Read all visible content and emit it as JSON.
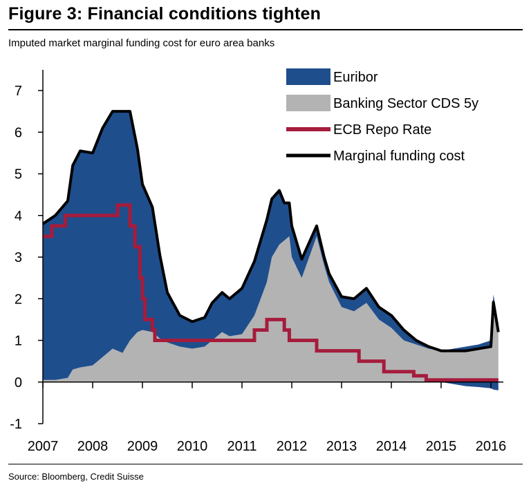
{
  "figure": {
    "title": "Figure 3: Financial conditions tighten",
    "subtitle": "Imputed market marginal funding cost for euro area banks",
    "source": "Source: Bloomberg, Credit Suisse"
  },
  "chart_data": {
    "type": "area",
    "title": "Imputed market marginal funding cost for euro area banks",
    "xlabel": "",
    "ylabel": "",
    "xlim": [
      2007.0,
      2016.25
    ],
    "ylim": [
      -1,
      7
    ],
    "x_ticks": [
      "2007",
      "2008",
      "2009",
      "2010",
      "2011",
      "2012",
      "2013",
      "2014",
      "2015",
      "2016"
    ],
    "y_ticks": [
      "-1",
      "0",
      "1",
      "2",
      "3",
      "4",
      "5",
      "6",
      "7"
    ],
    "grid": false,
    "legend_position": "top-right",
    "colors": {
      "euribor": "#1f4e8c",
      "cds": "#b3b3b3",
      "repo": "#a51c3c",
      "marginal": "#000000"
    },
    "series": [
      {
        "name": "Banking Sector CDS 5y",
        "style": "area",
        "x": [
          2007.0,
          2007.25,
          2007.5,
          2007.6,
          2007.75,
          2008.0,
          2008.2,
          2008.4,
          2008.6,
          2008.75,
          2008.9,
          2009.0,
          2009.2,
          2009.35,
          2009.5,
          2009.75,
          2010.0,
          2010.25,
          2010.4,
          2010.6,
          2010.75,
          2011.0,
          2011.25,
          2011.5,
          2011.6,
          2011.75,
          2011.85,
          2011.95,
          2012.0,
          2012.2,
          2012.35,
          2012.5,
          2012.65,
          2012.75,
          2013.0,
          2013.25,
          2013.5,
          2013.75,
          2014.0,
          2014.25,
          2014.5,
          2014.75,
          2015.0,
          2015.25,
          2015.5,
          2015.75,
          2016.0,
          2016.05,
          2016.15
        ],
        "values": [
          0.05,
          0.05,
          0.1,
          0.3,
          0.35,
          0.4,
          0.6,
          0.8,
          0.7,
          1.0,
          1.2,
          1.25,
          1.2,
          1.05,
          0.95,
          0.85,
          0.8,
          0.85,
          1.0,
          1.2,
          1.1,
          1.15,
          1.6,
          2.4,
          3.0,
          3.3,
          3.4,
          3.5,
          3.0,
          2.5,
          3.0,
          3.5,
          2.8,
          2.4,
          1.8,
          1.7,
          1.9,
          1.5,
          1.3,
          1.0,
          0.9,
          0.8,
          0.75,
          0.8,
          0.85,
          0.9,
          1.0,
          2.1,
          1.4
        ]
      },
      {
        "name": "Euribor",
        "style": "area",
        "x": [
          2007.0,
          2007.25,
          2007.5,
          2007.6,
          2007.75,
          2008.0,
          2008.2,
          2008.4,
          2008.6,
          2008.75,
          2008.9,
          2009.0,
          2009.2,
          2009.35,
          2009.5,
          2009.75,
          2010.0,
          2010.25,
          2010.4,
          2010.6,
          2010.75,
          2011.0,
          2011.25,
          2011.5,
          2011.6,
          2011.75,
          2011.85,
          2011.95,
          2012.0,
          2012.2,
          2012.35,
          2012.5,
          2012.65,
          2012.75,
          2013.0,
          2013.25,
          2013.5,
          2013.75,
          2014.0,
          2014.25,
          2014.5,
          2014.75,
          2015.0,
          2015.25,
          2015.5,
          2015.75,
          2016.0,
          2016.05,
          2016.15
        ],
        "values": [
          3.75,
          3.95,
          4.25,
          4.9,
          5.2,
          5.1,
          5.5,
          5.7,
          5.8,
          5.5,
          4.4,
          3.5,
          3.0,
          2.0,
          1.2,
          0.75,
          0.65,
          0.7,
          0.9,
          0.95,
          0.9,
          1.1,
          1.3,
          1.5,
          1.4,
          1.3,
          0.9,
          0.8,
          0.75,
          0.45,
          0.35,
          0.25,
          0.2,
          0.2,
          0.25,
          0.3,
          0.35,
          0.3,
          0.3,
          0.25,
          0.1,
          0.05,
          0.0,
          -0.05,
          -0.1,
          -0.12,
          -0.15,
          -0.18,
          -0.2
        ]
      },
      {
        "name": "ECB Repo Rate",
        "style": "step",
        "x": [
          2007.0,
          2007.18,
          2007.45,
          2008.5,
          2008.75,
          2008.85,
          2008.95,
          2009.0,
          2009.05,
          2009.2,
          2009.25,
          2009.35,
          2011.25,
          2011.5,
          2011.85,
          2011.95,
          2012.5,
          2013.35,
          2013.85,
          2014.45,
          2014.7,
          2016.15
        ],
        "values": [
          3.5,
          3.75,
          4.0,
          4.25,
          3.75,
          3.25,
          2.5,
          2.0,
          1.5,
          1.25,
          1.0,
          1.0,
          1.25,
          1.5,
          1.25,
          1.0,
          0.75,
          0.5,
          0.25,
          0.15,
          0.05,
          0.05
        ]
      },
      {
        "name": "Marginal funding cost",
        "style": "line",
        "x": [
          2007.0,
          2007.25,
          2007.5,
          2007.6,
          2007.75,
          2008.0,
          2008.2,
          2008.4,
          2008.6,
          2008.75,
          2008.9,
          2009.0,
          2009.2,
          2009.35,
          2009.5,
          2009.75,
          2010.0,
          2010.25,
          2010.4,
          2010.6,
          2010.75,
          2011.0,
          2011.25,
          2011.5,
          2011.6,
          2011.75,
          2011.85,
          2011.95,
          2012.0,
          2012.2,
          2012.35,
          2012.5,
          2012.65,
          2012.75,
          2013.0,
          2013.25,
          2013.5,
          2013.75,
          2014.0,
          2014.25,
          2014.5,
          2014.75,
          2015.0,
          2015.25,
          2015.5,
          2015.75,
          2016.0,
          2016.05,
          2016.15
        ],
        "values": [
          3.8,
          4.0,
          4.35,
          5.2,
          5.55,
          5.5,
          6.1,
          6.5,
          6.5,
          6.5,
          5.6,
          4.75,
          4.2,
          3.05,
          2.15,
          1.6,
          1.45,
          1.55,
          1.9,
          2.15,
          2.0,
          2.25,
          2.9,
          3.9,
          4.4,
          4.6,
          4.3,
          4.3,
          3.75,
          2.95,
          3.35,
          3.75,
          3.0,
          2.6,
          2.05,
          2.0,
          2.25,
          1.8,
          1.6,
          1.25,
          1.0,
          0.85,
          0.75,
          0.75,
          0.75,
          0.8,
          0.85,
          1.92,
          1.2
        ]
      }
    ],
    "legend": [
      {
        "label": "Euribor",
        "key": "euribor",
        "shape": "patch"
      },
      {
        "label": "Banking Sector CDS 5y",
        "key": "cds",
        "shape": "patch"
      },
      {
        "label": "ECB Repo Rate",
        "key": "repo",
        "shape": "line"
      },
      {
        "label": "Marginal funding cost",
        "key": "marginal",
        "shape": "line"
      }
    ]
  }
}
